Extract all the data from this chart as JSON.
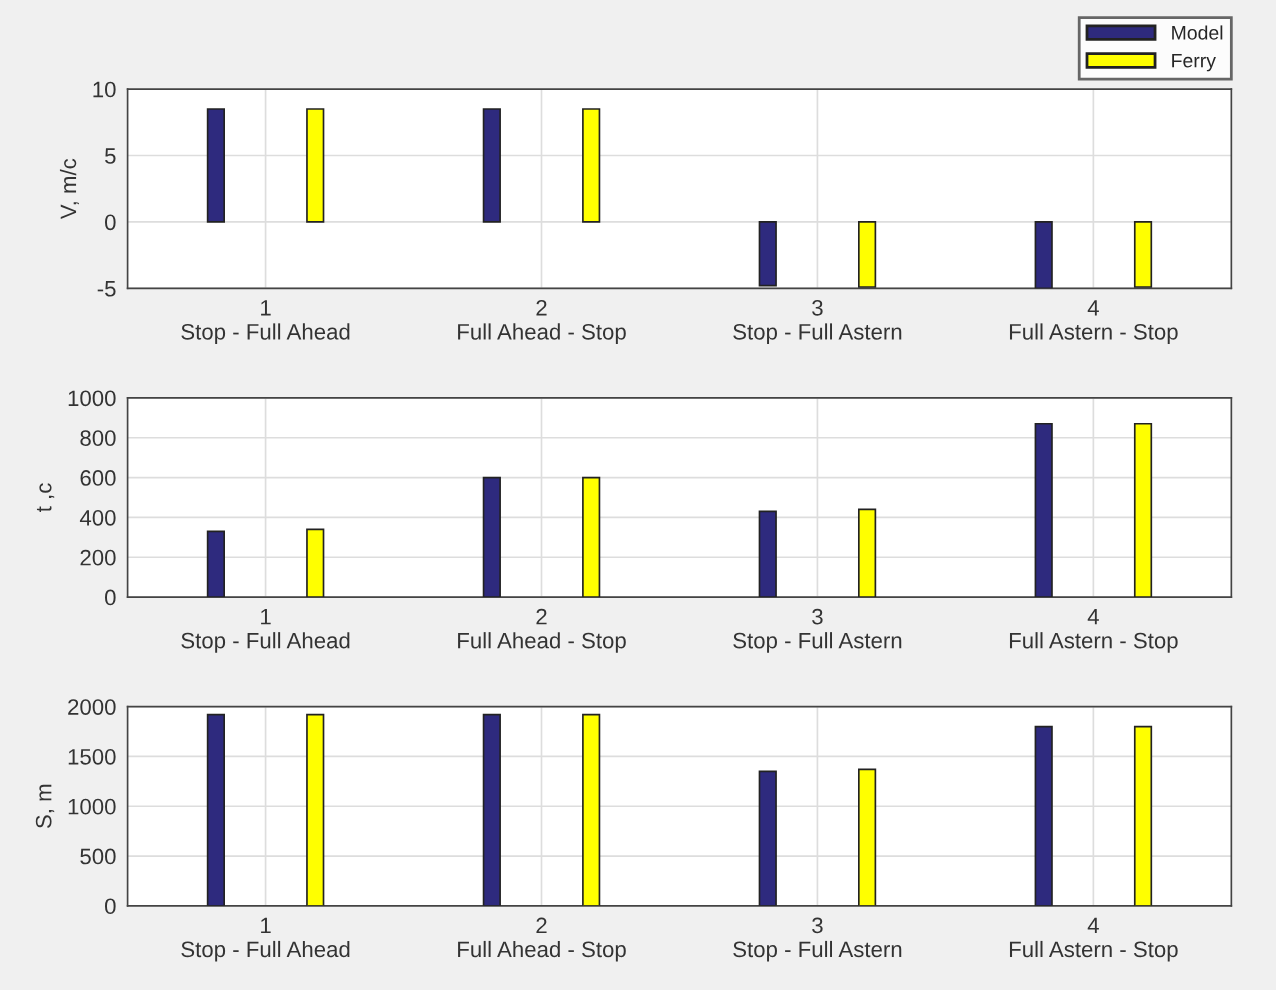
{
  "chart_data": [
    {
      "type": "bar",
      "ylabel": "V, m/c",
      "categories": [
        "1\nStop - Full Ahead",
        "2\nFull Ahead - Stop",
        "3\nStop - Full Astern",
        "4\nFull Astern - Stop"
      ],
      "ylim": [
        -5,
        10
      ],
      "yticks": [
        -5,
        0,
        5,
        10
      ],
      "grid": true,
      "legend": "top right",
      "series": [
        {
          "name": "Model",
          "color": "#2e2a7e",
          "values": [
            8.5,
            8.5,
            -4.8,
            -5
          ]
        },
        {
          "name": "Ferry",
          "color": "#ffff00",
          "values": [
            8.5,
            8.5,
            -4.9,
            -4.9
          ]
        }
      ]
    },
    {
      "type": "bar",
      "ylabel": "t ,c",
      "categories": [
        "1\nStop - Full Ahead",
        "2\nFull Ahead - Stop",
        "3\nStop - Full Astern",
        "4\nFull Astern - Stop"
      ],
      "ylim": [
        0,
        1000
      ],
      "yticks": [
        0,
        200,
        400,
        600,
        800,
        1000
      ],
      "grid": true,
      "series": [
        {
          "color": "#2e2a7e",
          "values": [
            330,
            600,
            430,
            870
          ]
        },
        {
          "color": "#ffff00",
          "values": [
            340,
            600,
            440,
            870
          ]
        }
      ]
    },
    {
      "type": "bar",
      "ylabel": "S, m",
      "categories": [
        "1\nStop - Full Ahead",
        "2\nFull Ahead - Stop",
        "3\nStop - Full Astern",
        "4\nFull Astern - Stop"
      ],
      "ylim": [
        0,
        2000
      ],
      "yticks": [
        0,
        500,
        1000,
        1500,
        2000
      ],
      "grid": true,
      "series": [
        {
          "color": "#2e2a7e",
          "values": [
            1920,
            1920,
            1350,
            1800
          ]
        },
        {
          "color": "#ffff00",
          "values": [
            1920,
            1920,
            1370,
            1800
          ]
        }
      ]
    }
  ]
}
